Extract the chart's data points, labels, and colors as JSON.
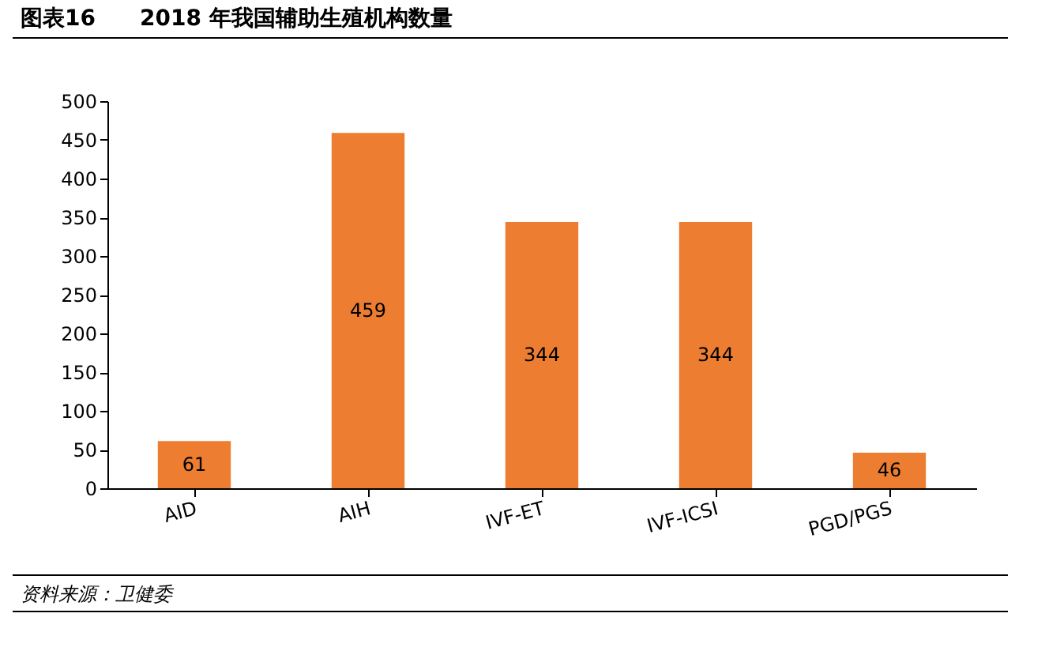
{
  "chart_data": {
    "type": "bar",
    "title": "图表16　　2018 年我国辅助生殖机构数量",
    "categories": [
      "AID",
      "AIH",
      "IVF-ET",
      "IVF-ICSI",
      "PGD/PGS"
    ],
    "values": [
      61,
      459,
      344,
      344,
      46
    ],
    "color": "#ed7d31",
    "ylim": [
      0,
      500
    ],
    "yticks": [
      0,
      50,
      100,
      150,
      200,
      250,
      300,
      350,
      400,
      450,
      500
    ],
    "grid": false,
    "data_labels": true,
    "annotations": [
      "资料来源：卫健委"
    ]
  }
}
